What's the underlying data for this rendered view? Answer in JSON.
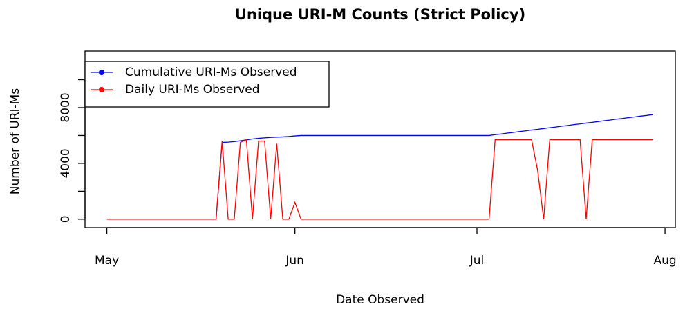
{
  "chart_data": {
    "type": "line",
    "title": "Unique URI-M Counts (Strict Policy)",
    "x_label": "Date Observed",
    "y_label": "Number of URI-Ms",
    "x": [
      0,
      1,
      2,
      3,
      4,
      5,
      6,
      7,
      8,
      9,
      10,
      11,
      12,
      13,
      14,
      15,
      16,
      17,
      18,
      19,
      20,
      21,
      22,
      23,
      24,
      25,
      26,
      27,
      28,
      29,
      30,
      31,
      32,
      33,
      34,
      35,
      36,
      37,
      38,
      39,
      40,
      41,
      42,
      43,
      44,
      45,
      46,
      47,
      48,
      49,
      50,
      51,
      52,
      53,
      54,
      55,
      56,
      57,
      58,
      59,
      60,
      61,
      62,
      63,
      64,
      65,
      66,
      67,
      68,
      69,
      70,
      71,
      72,
      73,
      74,
      75,
      76,
      77,
      78,
      79,
      80,
      81,
      82,
      83,
      84,
      85,
      86,
      87,
      88,
      89,
      90
    ],
    "series": [
      {
        "name": "Cumulative URI-Ms Observed",
        "color": "#0000ff",
        "values": [
          0,
          0,
          0,
          0,
          0,
          0,
          0,
          0,
          0,
          0,
          0,
          0,
          0,
          0,
          0,
          0,
          0,
          0,
          0,
          5500,
          5520,
          5560,
          5620,
          5680,
          5750,
          5800,
          5830,
          5860,
          5880,
          5900,
          5930,
          5970,
          6000,
          6000,
          6000,
          6000,
          6000,
          6000,
          6000,
          6000,
          6000,
          6000,
          6000,
          6000,
          6000,
          6000,
          6000,
          6000,
          6000,
          6000,
          6000,
          6000,
          6000,
          6000,
          6000,
          6000,
          6000,
          6000,
          6000,
          6000,
          6000,
          6000,
          6000,
          6000,
          6060,
          6110,
          6170,
          6220,
          6280,
          6330,
          6390,
          6440,
          6500,
          6560,
          6610,
          6670,
          6720,
          6780,
          6830,
          6890,
          6940,
          7000,
          7060,
          7110,
          7170,
          7220,
          7280,
          7330,
          7390,
          7440,
          7500
        ]
      },
      {
        "name": "Daily URI-Ms Observed",
        "color": "#ff0000",
        "values": [
          0,
          0,
          0,
          0,
          0,
          0,
          0,
          0,
          0,
          0,
          0,
          0,
          0,
          0,
          0,
          0,
          0,
          0,
          0,
          5600,
          0,
          0,
          5500,
          5700,
          0,
          5600,
          5600,
          0,
          5400,
          0,
          0,
          1200,
          0,
          0,
          0,
          0,
          0,
          0,
          0,
          0,
          0,
          0,
          0,
          0,
          0,
          0,
          0,
          0,
          0,
          0,
          0,
          0,
          0,
          0,
          0,
          0,
          0,
          0,
          0,
          0,
          0,
          0,
          0,
          0,
          5700,
          5700,
          5700,
          5700,
          5700,
          5700,
          5700,
          3500,
          0,
          5700,
          5700,
          5700,
          5700,
          5700,
          5700,
          0,
          5700,
          5700,
          5700,
          5700,
          5700,
          5700,
          5700,
          5700,
          5700,
          5700,
          5700
        ]
      }
    ],
    "xlim": [
      -3.6,
      93.7
    ],
    "xticks": [
      {
        "value": 0,
        "label": "May"
      },
      {
        "value": 31,
        "label": "Jun"
      },
      {
        "value": 61,
        "label": "Jul"
      },
      {
        "value": 92,
        "label": "Aug"
      }
    ],
    "ylim": [
      -600,
      12050
    ],
    "yticks": [
      0,
      4000,
      8000
    ],
    "yminor": [
      2000,
      6000,
      10000
    ],
    "legend": "topleft"
  }
}
